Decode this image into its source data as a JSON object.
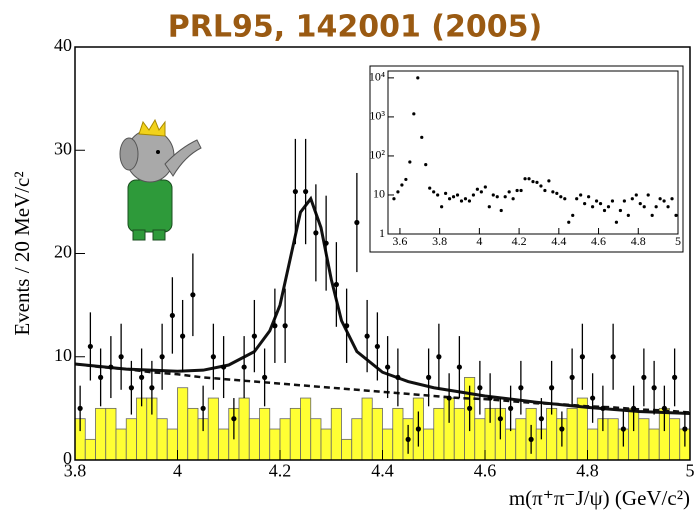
{
  "chart_data": [
    {
      "type": "scatter",
      "title": "PRL95, 142001 (2005)",
      "xlabel": "m(π⁺π⁻J/ψ) (GeV/c²)",
      "ylabel": "Events / 20 MeV/c²",
      "xlim": [
        3.8,
        5.0
      ],
      "ylim": [
        0,
        40
      ],
      "xticks": [
        3.8,
        4,
        4.2,
        4.4,
        4.6,
        4.8,
        5
      ],
      "yticks": [
        0,
        10,
        20,
        30,
        40
      ],
      "color": "#000000",
      "x": [
        3.81,
        3.83,
        3.85,
        3.87,
        3.89,
        3.91,
        3.93,
        3.95,
        3.97,
        3.99,
        4.01,
        4.03,
        4.05,
        4.07,
        4.09,
        4.11,
        4.13,
        4.15,
        4.17,
        4.19,
        4.21,
        4.23,
        4.25,
        4.27,
        4.29,
        4.31,
        4.33,
        4.35,
        4.37,
        4.39,
        4.41,
        4.43,
        4.45,
        4.47,
        4.49,
        4.51,
        4.53,
        4.55,
        4.57,
        4.59,
        4.61,
        4.63,
        4.65,
        4.67,
        4.69,
        4.71,
        4.73,
        4.75,
        4.77,
        4.79,
        4.81,
        4.83,
        4.85,
        4.87,
        4.89,
        4.91,
        4.93,
        4.95,
        4.97,
        4.99
      ],
      "values": [
        5,
        11,
        8,
        9,
        10,
        7,
        8,
        7,
        10,
        14,
        12,
        16,
        5,
        10,
        9,
        4,
        9,
        12,
        8,
        13,
        13,
        26,
        26,
        22,
        21,
        17,
        13,
        23,
        12,
        11,
        9,
        8,
        2,
        3,
        8,
        10,
        6,
        9,
        5,
        7,
        6,
        4,
        5,
        7,
        2,
        4,
        7,
        3,
        8,
        10,
        6,
        5,
        10,
        3,
        5,
        8,
        7,
        5,
        8,
        3
      ],
      "errors": [
        2.2,
        3.3,
        2.8,
        3,
        3.2,
        2.6,
        2.8,
        2.6,
        3.2,
        3.7,
        3.5,
        4,
        2.2,
        3.2,
        3,
        2,
        3,
        3.5,
        2.8,
        3.6,
        3.6,
        5.1,
        5.1,
        4.7,
        4.6,
        4.1,
        3.6,
        4.8,
        3.5,
        3.3,
        3,
        2.8,
        1.4,
        1.7,
        2.8,
        3.2,
        2.4,
        3,
        2.2,
        2.6,
        2.4,
        2,
        2.2,
        2.6,
        1.4,
        2,
        2.6,
        1.7,
        2.8,
        3.2,
        2.4,
        2.2,
        3.2,
        1.7,
        2.2,
        2.8,
        2.6,
        2.2,
        2.8,
        1.7
      ],
      "histogram": {
        "color": "#ffff33",
        "bins": [
          3.8,
          3.82,
          3.84,
          3.86,
          3.88,
          3.9,
          3.92,
          3.94,
          3.96,
          3.98,
          4.0,
          4.02,
          4.04,
          4.06,
          4.08,
          4.1,
          4.12,
          4.14,
          4.16,
          4.18,
          4.2,
          4.22,
          4.24,
          4.26,
          4.28,
          4.3,
          4.32,
          4.34,
          4.36,
          4.38,
          4.4,
          4.42,
          4.44,
          4.46,
          4.48,
          4.5,
          4.52,
          4.54,
          4.56,
          4.58,
          4.6,
          4.62,
          4.64,
          4.66,
          4.68,
          4.7,
          4.72,
          4.74,
          4.76,
          4.78,
          4.8,
          4.82,
          4.84,
          4.86,
          4.88,
          4.9,
          4.92,
          4.94,
          4.96,
          4.98,
          5.0
        ],
        "counts": [
          4,
          2,
          5,
          5,
          3,
          4,
          6,
          6,
          4,
          3,
          7,
          5,
          4,
          6,
          3,
          5,
          6,
          4,
          5,
          3,
          4,
          5,
          6,
          4,
          3,
          5,
          2,
          4,
          6,
          5,
          3,
          5,
          4,
          6,
          3,
          5,
          6,
          5,
          8,
          4,
          5,
          5,
          3,
          4,
          5,
          3,
          5,
          4,
          5,
          6,
          3,
          4,
          4,
          3,
          5,
          4,
          3,
          5,
          4,
          3
        ]
      },
      "fits": [
        {
          "color": "#111111",
          "dash": false,
          "x": [
            3.8,
            3.9,
            4.0,
            4.05,
            4.1,
            4.15,
            4.18,
            4.2,
            4.22,
            4.24,
            4.26,
            4.28,
            4.3,
            4.32,
            4.35,
            4.4,
            4.45,
            4.5,
            4.6,
            4.7,
            4.8,
            4.9,
            5.0
          ],
          "values": [
            9.3,
            8.8,
            8.6,
            8.7,
            9.2,
            10.5,
            12.5,
            15,
            19.5,
            24,
            25.3,
            22.5,
            17.5,
            13.5,
            10.5,
            8.5,
            7.6,
            7,
            6.2,
            5.6,
            5.1,
            4.7,
            4.5
          ]
        },
        {
          "color": "#111111",
          "dash": true,
          "x": [
            3.8,
            3.85,
            3.9,
            3.95,
            4.0,
            4.05,
            4.1,
            4.15,
            4.2,
            4.25,
            4.3,
            4.35,
            4.4,
            4.45,
            4.5,
            4.55,
            4.6,
            4.65,
            4.7,
            4.75,
            4.8,
            4.85,
            4.9,
            4.95,
            5.0
          ],
          "values": [
            9.3,
            9.0,
            8.8,
            8.5,
            8.3,
            8.0,
            7.8,
            7.6,
            7.4,
            7.2,
            7.0,
            6.8,
            6.6,
            6.4,
            6.2,
            6.0,
            5.9,
            5.7,
            5.5,
            5.4,
            5.2,
            5.1,
            4.9,
            4.8,
            4.6
          ]
        }
      ]
    },
    {
      "type": "scatter",
      "log_y": true,
      "xlim": [
        3.54,
        5.0
      ],
      "ylim": [
        1,
        15000
      ],
      "xticks": [
        3.6,
        3.8,
        4,
        4.2,
        4.4,
        4.6,
        4.8,
        5
      ],
      "yticks": [
        1,
        10,
        {
          "value": 100,
          "label": "10²"
        },
        {
          "value": 1000,
          "label": "10³"
        },
        {
          "value": 10000,
          "label": "10⁴"
        }
      ],
      "color": "#000000",
      "x": [
        3.57,
        3.59,
        3.61,
        3.63,
        3.65,
        3.67,
        3.69,
        3.71,
        3.73,
        3.75,
        3.77,
        3.79,
        3.81,
        3.83,
        3.85,
        3.87,
        3.89,
        3.91,
        3.93,
        3.95,
        3.97,
        3.99,
        4.01,
        4.03,
        4.05,
        4.07,
        4.09,
        4.11,
        4.13,
        4.15,
        4.17,
        4.19,
        4.21,
        4.23,
        4.25,
        4.27,
        4.29,
        4.31,
        4.33,
        4.35,
        4.37,
        4.39,
        4.41,
        4.43,
        4.45,
        4.47,
        4.49,
        4.51,
        4.53,
        4.55,
        4.57,
        4.59,
        4.61,
        4.63,
        4.65,
        4.67,
        4.69,
        4.71,
        4.73,
        4.75,
        4.77,
        4.79,
        4.81,
        4.83,
        4.85,
        4.87,
        4.89,
        4.91,
        4.93,
        4.95,
        4.97,
        4.99
      ],
      "values": [
        8,
        12,
        18,
        25,
        70,
        1200,
        10000,
        300,
        60,
        15,
        12,
        10,
        5,
        11,
        8,
        9,
        10,
        7,
        8,
        7,
        10,
        14,
        12,
        16,
        5,
        10,
        9,
        4,
        9,
        12,
        8,
        13,
        13,
        26,
        26,
        22,
        21,
        17,
        13,
        23,
        12,
        11,
        9,
        8,
        2,
        3,
        8,
        10,
        6,
        9,
        5,
        7,
        6,
        4,
        5,
        7,
        2,
        4,
        7,
        3,
        8,
        10,
        6,
        5,
        10,
        3,
        5,
        8,
        7,
        5,
        8,
        3
      ]
    }
  ]
}
